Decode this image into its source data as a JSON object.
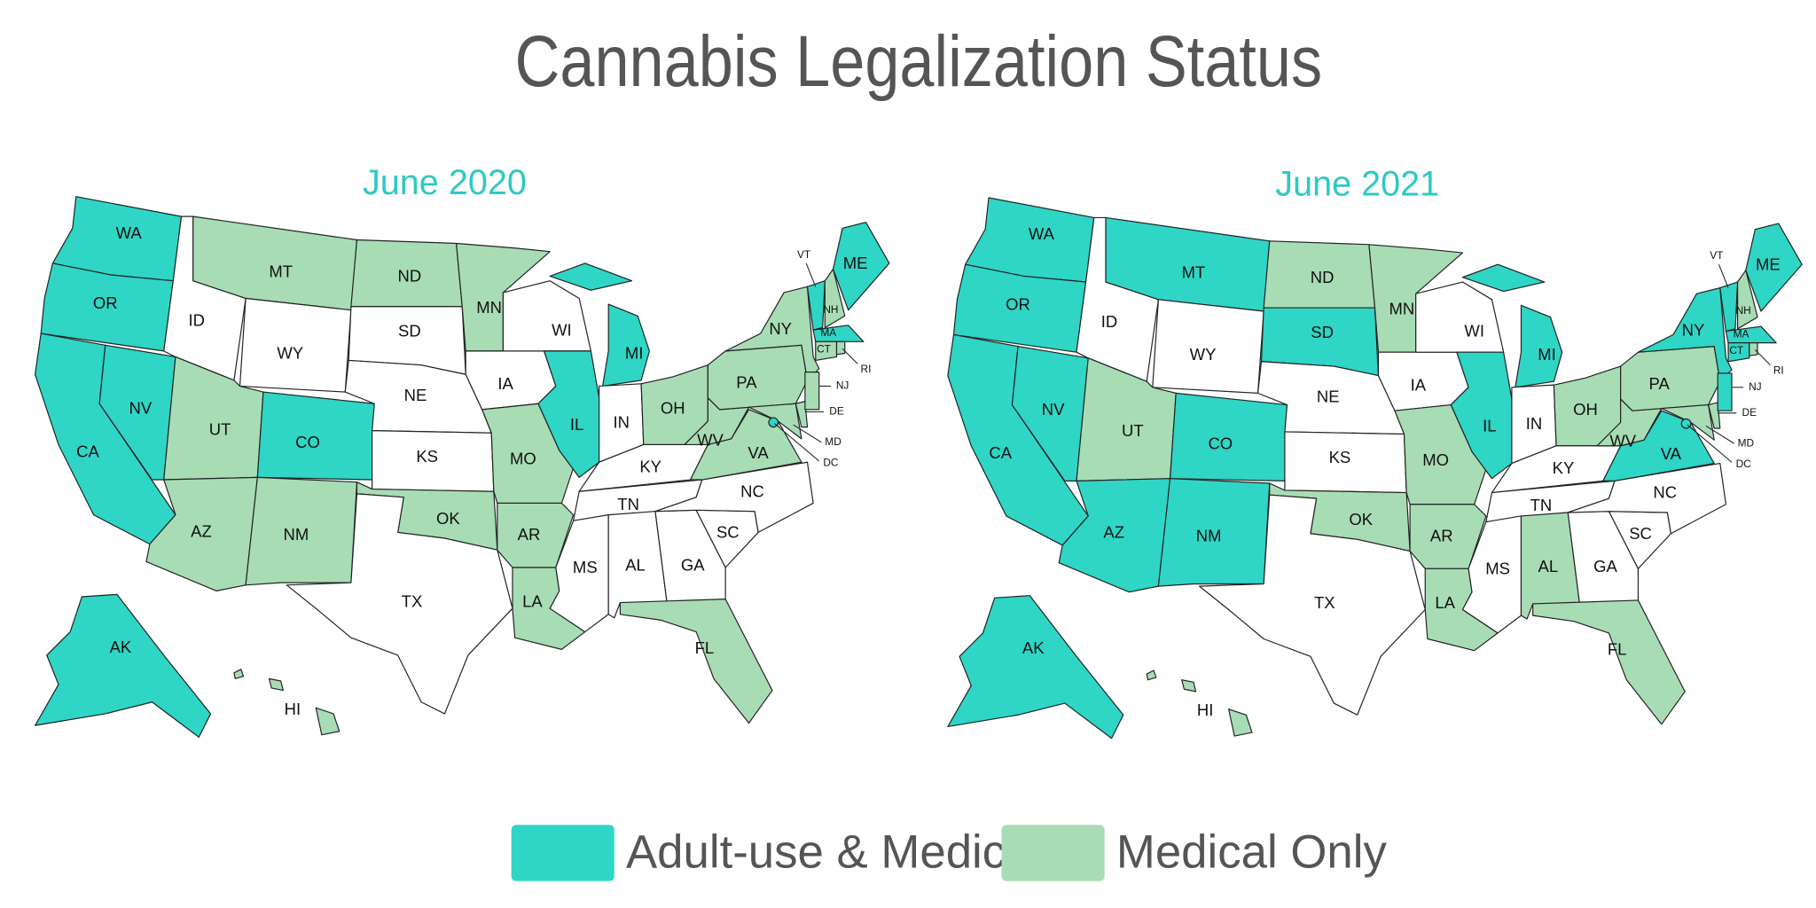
{
  "title": "Cannabis Legalization Status",
  "legend": [
    {
      "label": "Adult-use & Medical",
      "color": "#2fd5c5"
    },
    {
      "label": "Medical Only",
      "color": "#a8dcb5"
    }
  ],
  "maps": [
    {
      "title": "June 2020",
      "states": [
        {
          "label": "WA",
          "color": "#2fd5c5"
        },
        {
          "label": "OR",
          "color": "#2fd5c5"
        },
        {
          "label": "CA",
          "color": "#2fd5c5"
        },
        {
          "label": "NV",
          "color": "#2fd5c5"
        },
        {
          "label": "ID",
          "color": "#ffffff"
        },
        {
          "label": "MT",
          "color": "#a8dcb5"
        },
        {
          "label": "WY",
          "color": "#ffffff"
        },
        {
          "label": "UT",
          "color": "#a8dcb5"
        },
        {
          "label": "CO",
          "color": "#2fd5c5"
        },
        {
          "label": "AZ",
          "color": "#a8dcb5"
        },
        {
          "label": "NM",
          "color": "#a8dcb5"
        },
        {
          "label": "ND",
          "color": "#a8dcb5"
        },
        {
          "label": "SD",
          "color": "#ffffff"
        },
        {
          "label": "NE",
          "color": "#ffffff"
        },
        {
          "label": "KS",
          "color": "#ffffff"
        },
        {
          "label": "OK",
          "color": "#a8dcb5"
        },
        {
          "label": "TX",
          "color": "#ffffff"
        },
        {
          "label": "MN",
          "color": "#a8dcb5"
        },
        {
          "label": "IA",
          "color": "#ffffff"
        },
        {
          "label": "MO",
          "color": "#a8dcb5"
        },
        {
          "label": "AR",
          "color": "#a8dcb5"
        },
        {
          "label": "LA",
          "color": "#a8dcb5"
        },
        {
          "label": "WI",
          "color": "#ffffff"
        },
        {
          "label": "IL",
          "color": "#2fd5c5"
        },
        {
          "label": "MI",
          "color": "#2fd5c5"
        },
        {
          "label": "IN",
          "color": "#ffffff"
        },
        {
          "label": "OH",
          "color": "#a8dcb5"
        },
        {
          "label": "KY",
          "color": "#ffffff"
        },
        {
          "label": "TN",
          "color": "#ffffff"
        },
        {
          "label": "MS",
          "color": "#ffffff"
        },
        {
          "label": "AL",
          "color": "#ffffff"
        },
        {
          "label": "GA",
          "color": "#ffffff"
        },
        {
          "label": "FL",
          "color": "#a8dcb5"
        },
        {
          "label": "SC",
          "color": "#ffffff"
        },
        {
          "label": "NC",
          "color": "#ffffff"
        },
        {
          "label": "VA",
          "color": "#a8dcb5"
        },
        {
          "label": "WV",
          "color": "#a8dcb5"
        },
        {
          "label": "PA",
          "color": "#a8dcb5"
        },
        {
          "label": "NY",
          "color": "#a8dcb5"
        },
        {
          "label": "MD",
          "color": "#a8dcb5"
        },
        {
          "label": "DE",
          "color": "#a8dcb5"
        },
        {
          "label": "NJ",
          "color": "#a8dcb5"
        },
        {
          "label": "DC",
          "color": "#2fd5c5"
        },
        {
          "label": "VT",
          "color": "#2fd5c5"
        },
        {
          "label": "NH",
          "color": "#a8dcb5"
        },
        {
          "label": "ME",
          "color": "#2fd5c5"
        },
        {
          "label": "MA",
          "color": "#2fd5c5"
        },
        {
          "label": "CT",
          "color": "#a8dcb5"
        },
        {
          "label": "RI",
          "color": "#a8dcb5"
        },
        {
          "label": "AK",
          "color": "#2fd5c5"
        },
        {
          "label": "HI",
          "color": "#a8dcb5"
        }
      ]
    },
    {
      "title": "June 2021",
      "states": [
        {
          "label": "WA",
          "color": "#2fd5c5"
        },
        {
          "label": "OR",
          "color": "#2fd5c5"
        },
        {
          "label": "CA",
          "color": "#2fd5c5"
        },
        {
          "label": "NV",
          "color": "#2fd5c5"
        },
        {
          "label": "ID",
          "color": "#ffffff"
        },
        {
          "label": "MT",
          "color": "#2fd5c5"
        },
        {
          "label": "WY",
          "color": "#ffffff"
        },
        {
          "label": "UT",
          "color": "#a8dcb5"
        },
        {
          "label": "CO",
          "color": "#2fd5c5"
        },
        {
          "label": "AZ",
          "color": "#2fd5c5"
        },
        {
          "label": "NM",
          "color": "#2fd5c5"
        },
        {
          "label": "ND",
          "color": "#a8dcb5"
        },
        {
          "label": "SD",
          "color": "#2fd5c5"
        },
        {
          "label": "NE",
          "color": "#ffffff"
        },
        {
          "label": "KS",
          "color": "#ffffff"
        },
        {
          "label": "OK",
          "color": "#a8dcb5"
        },
        {
          "label": "TX",
          "color": "#ffffff"
        },
        {
          "label": "MN",
          "color": "#a8dcb5"
        },
        {
          "label": "IA",
          "color": "#ffffff"
        },
        {
          "label": "MO",
          "color": "#a8dcb5"
        },
        {
          "label": "AR",
          "color": "#a8dcb5"
        },
        {
          "label": "LA",
          "color": "#a8dcb5"
        },
        {
          "label": "WI",
          "color": "#ffffff"
        },
        {
          "label": "IL",
          "color": "#2fd5c5"
        },
        {
          "label": "MI",
          "color": "#2fd5c5"
        },
        {
          "label": "IN",
          "color": "#ffffff"
        },
        {
          "label": "OH",
          "color": "#a8dcb5"
        },
        {
          "label": "KY",
          "color": "#ffffff"
        },
        {
          "label": "TN",
          "color": "#ffffff"
        },
        {
          "label": "MS",
          "color": "#ffffff"
        },
        {
          "label": "AL",
          "color": "#a8dcb5"
        },
        {
          "label": "GA",
          "color": "#ffffff"
        },
        {
          "label": "FL",
          "color": "#a8dcb5"
        },
        {
          "label": "SC",
          "color": "#ffffff"
        },
        {
          "label": "NC",
          "color": "#ffffff"
        },
        {
          "label": "VA",
          "color": "#2fd5c5"
        },
        {
          "label": "WV",
          "color": "#a8dcb5"
        },
        {
          "label": "PA",
          "color": "#a8dcb5"
        },
        {
          "label": "NY",
          "color": "#2fd5c5"
        },
        {
          "label": "MD",
          "color": "#a8dcb5"
        },
        {
          "label": "DE",
          "color": "#a8dcb5"
        },
        {
          "label": "NJ",
          "color": "#2fd5c5"
        },
        {
          "label": "DC",
          "color": "#2fd5c5"
        },
        {
          "label": "VT",
          "color": "#2fd5c5"
        },
        {
          "label": "NH",
          "color": "#a8dcb5"
        },
        {
          "label": "ME",
          "color": "#2fd5c5"
        },
        {
          "label": "MA",
          "color": "#2fd5c5"
        },
        {
          "label": "CT",
          "color": "#2fd5c5"
        },
        {
          "label": "RI",
          "color": "#a8dcb5"
        },
        {
          "label": "AK",
          "color": "#2fd5c5"
        },
        {
          "label": "HI",
          "color": "#a8dcb5"
        }
      ]
    }
  ]
}
